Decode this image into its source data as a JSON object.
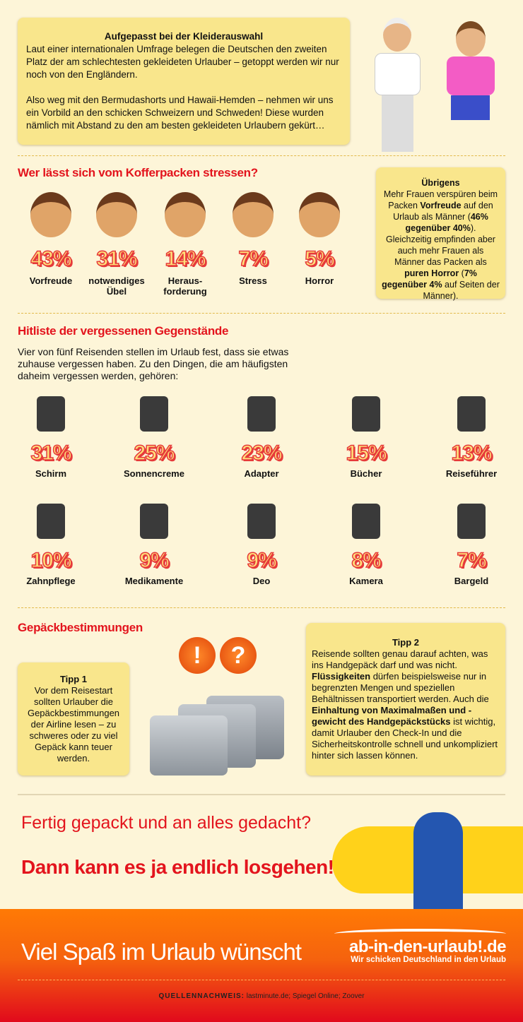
{
  "intro": {
    "title": "Aufgepasst bei der Kleiderauswahl",
    "p1": "Laut einer internationalen Umfrage belegen die Deutschen den zweiten Platz der am schlechtesten gekleideten Urlauber – getoppt werden wir nur noch von den Engländern.",
    "p2": "Also weg mit den Bermudashorts und Hawaii-Hemden – nehmen wir uns ein Vorbild an den schicken Schweizern und Schweden! Diese wurden nämlich mit Abstand zu den am besten gekleideten Urlaubern gekürt…"
  },
  "stress": {
    "heading": "Wer lässt sich vom Kofferpacken stressen?",
    "items": [
      {
        "pct": "43%",
        "label": "Vorfreude",
        "icon": "happy-face"
      },
      {
        "pct": "31%",
        "label": "notwendiges Übel",
        "icon": "worried-face"
      },
      {
        "pct": "14%",
        "label": "Heraus-forderung",
        "icon": "grinning-face"
      },
      {
        "pct": "7%",
        "label": "Stress",
        "icon": "stressed-face"
      },
      {
        "pct": "5%",
        "label": "Horror",
        "icon": "screaming-face"
      }
    ]
  },
  "side": {
    "title": "Übrigens",
    "t1": "Mehr Frauen verspüren beim Packen ",
    "b1": "Vorfreude",
    "t2": " auf den Urlaub als Männer (",
    "b2": "46% gegenüber 40%",
    "t3": "). Gleichzeitig empfinden aber auch mehr Frauen als Männer das Packen als ",
    "b3": "puren Horror",
    "t4": " (",
    "b4": "7% gegenüber 4%",
    "t5": " auf Seiten der Männer)."
  },
  "forgot": {
    "heading": "Hitliste der vergessenen Gegenstände",
    "intro": "Vier von fünf Reisenden stellen im Urlaub fest, dass sie etwas zuhause vergessen haben. Zu den Dingen, die am häufigsten daheim vergessen werden, gehören:",
    "items": [
      {
        "pct": "31%",
        "label": "Schirm",
        "icon": "umbrella"
      },
      {
        "pct": "25%",
        "label": "Sonnencreme",
        "icon": "sunscreen"
      },
      {
        "pct": "23%",
        "label": "Adapter",
        "icon": "adapter"
      },
      {
        "pct": "15%",
        "label": "Bücher",
        "icon": "books"
      },
      {
        "pct": "13%",
        "label": "Reiseführer",
        "icon": "guidebook"
      },
      {
        "pct": "10%",
        "label": "Zahnpflege",
        "icon": "toothbrush"
      },
      {
        "pct": "9%",
        "label": "Medikamente",
        "icon": "medicine"
      },
      {
        "pct": "9%",
        "label": "Deo",
        "icon": "deodorant"
      },
      {
        "pct": "8%",
        "label": "Kamera",
        "icon": "camera"
      },
      {
        "pct": "7%",
        "label": "Bargeld",
        "icon": "cash"
      }
    ]
  },
  "luggage": {
    "heading": "Gepäckbestimmungen",
    "tip1_title": "Tipp 1",
    "tip1": "Vor dem Reisestart sollten Urlauber die Gepäckbestimmungen der Airline lesen – zu schweres oder zu viel Gepäck kann teuer werden.",
    "badges": [
      "!",
      "?"
    ],
    "tip2_title": "Tipp 2",
    "tip2_a": "Reisende sollten genau darauf achten, was ins Handgepäck darf und was nicht. ",
    "tip2_b1": "Flüssigkeiten",
    "tip2_c": " dürfen beispielsweise nur in begrenzten Mengen und speziellen Behältnissen transportiert werden. Auch die ",
    "tip2_b2": "Einhaltung von Maximalmaßen und -gewicht des Handgepäckstücks",
    "tip2_d": " ist wichtig, damit Urlauber den Check-In und die Sicherheitskontrolle schnell und unkompliziert hinter sich lassen können."
  },
  "cta": {
    "line1": "Fertig gepackt und an alles gedacht?",
    "line2": "Dann kann es ja endlich losgehen!"
  },
  "footer": {
    "wish": "Viel Spaß im Urlaub wünscht",
    "logo": "ab-in-den-urlaub!.de",
    "slogan": "Wir schicken Deutschland in den Urlaub",
    "src_label": "QUELLENNACHWEIS:",
    "src": " lastminute.de; Spiegel Online; Zoover"
  },
  "colors": {
    "accent": "#e3141d",
    "box": "#f9e68c",
    "background": "#fdf5d8",
    "footer": "#ff7a05"
  }
}
